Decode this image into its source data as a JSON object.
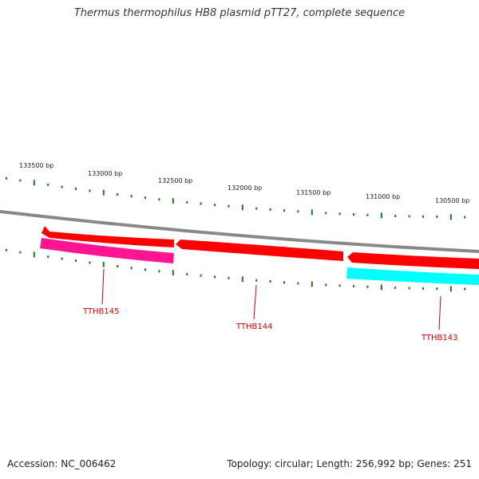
{
  "title": "Thermus thermophilus HB8 plasmid pTT27, complete sequence",
  "footer": {
    "accession": "Accession: NC_006462",
    "summary": "Topology: circular; Length: 256,992 bp; Genes: 251"
  },
  "bp_labels": [
    "133500 bp",
    "133000 bp",
    "132500 bp",
    "132000 bp",
    "131500 bp",
    "131000 bp",
    "130500 bp"
  ],
  "genes": [
    {
      "name": "TTHB145",
      "strand": "reverse",
      "color": "#ff0000"
    },
    {
      "name": "TTHB144",
      "strand": "reverse",
      "color": "#ff0000"
    },
    {
      "name": "TTHB143",
      "strand": "reverse",
      "color": "#ff0000"
    }
  ],
  "features": [
    {
      "name": "TTHB145",
      "color": "#ff1493"
    },
    {
      "name": "TTHB143",
      "color": "#00ffff"
    }
  ]
}
